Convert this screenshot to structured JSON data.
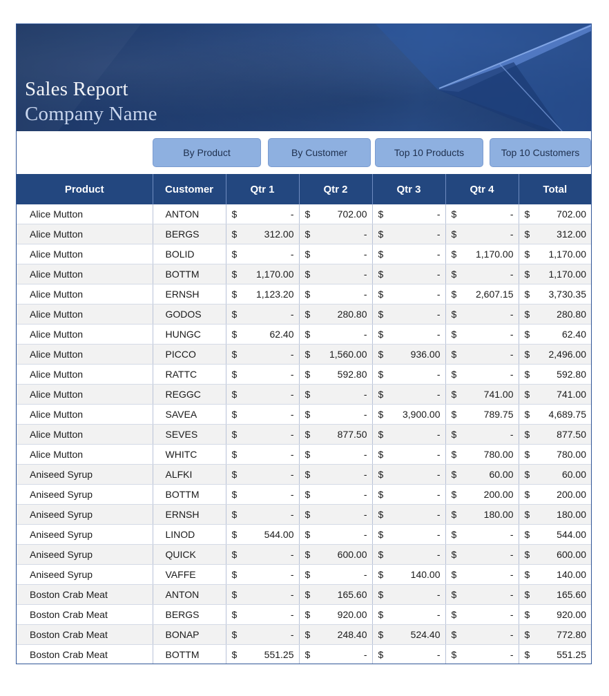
{
  "header": {
    "title": "Sales Report",
    "subtitle": "Company Name"
  },
  "nav": {
    "by_product": "By Product",
    "by_customer": "By Customer",
    "top10_products": "Top 10 Products",
    "top10_customers": "Top 10 Customers"
  },
  "table": {
    "columns": [
      "Product",
      "Customer",
      "Qtr 1",
      "Qtr 2",
      "Qtr 3",
      "Qtr 4",
      "Total"
    ],
    "currency_symbol": "$",
    "rows": [
      [
        "Alice Mutton",
        "ANTON",
        "-",
        "702.00",
        "-",
        "-",
        "702.00"
      ],
      [
        "Alice Mutton",
        "BERGS",
        "312.00",
        "-",
        "-",
        "-",
        "312.00"
      ],
      [
        "Alice Mutton",
        "BOLID",
        "-",
        "-",
        "-",
        "1,170.00",
        "1,170.00"
      ],
      [
        "Alice Mutton",
        "BOTTM",
        "1,170.00",
        "-",
        "-",
        "-",
        "1,170.00"
      ],
      [
        "Alice Mutton",
        "ERNSH",
        "1,123.20",
        "-",
        "-",
        "2,607.15",
        "3,730.35"
      ],
      [
        "Alice Mutton",
        "GODOS",
        "-",
        "280.80",
        "-",
        "-",
        "280.80"
      ],
      [
        "Alice Mutton",
        "HUNGC",
        "62.40",
        "-",
        "-",
        "-",
        "62.40"
      ],
      [
        "Alice Mutton",
        "PICCO",
        "-",
        "1,560.00",
        "936.00",
        "-",
        "2,496.00"
      ],
      [
        "Alice Mutton",
        "RATTC",
        "-",
        "592.80",
        "-",
        "-",
        "592.80"
      ],
      [
        "Alice Mutton",
        "REGGC",
        "-",
        "-",
        "-",
        "741.00",
        "741.00"
      ],
      [
        "Alice Mutton",
        "SAVEA",
        "-",
        "-",
        "3,900.00",
        "789.75",
        "4,689.75"
      ],
      [
        "Alice Mutton",
        "SEVES",
        "-",
        "877.50",
        "-",
        "-",
        "877.50"
      ],
      [
        "Alice Mutton",
        "WHITC",
        "-",
        "-",
        "-",
        "780.00",
        "780.00"
      ],
      [
        "Aniseed Syrup",
        "ALFKI",
        "-",
        "-",
        "-",
        "60.00",
        "60.00"
      ],
      [
        "Aniseed Syrup",
        "BOTTM",
        "-",
        "-",
        "-",
        "200.00",
        "200.00"
      ],
      [
        "Aniseed Syrup",
        "ERNSH",
        "-",
        "-",
        "-",
        "180.00",
        "180.00"
      ],
      [
        "Aniseed Syrup",
        "LINOD",
        "544.00",
        "-",
        "-",
        "-",
        "544.00"
      ],
      [
        "Aniseed Syrup",
        "QUICK",
        "-",
        "600.00",
        "-",
        "-",
        "600.00"
      ],
      [
        "Aniseed Syrup",
        "VAFFE",
        "-",
        "-",
        "140.00",
        "-",
        "140.00"
      ],
      [
        "Boston Crab Meat",
        "ANTON",
        "-",
        "165.60",
        "-",
        "-",
        "165.60"
      ],
      [
        "Boston Crab Meat",
        "BERGS",
        "-",
        "920.00",
        "-",
        "-",
        "920.00"
      ],
      [
        "Boston Crab Meat",
        "BONAP",
        "-",
        "248.40",
        "524.40",
        "-",
        "772.80"
      ],
      [
        "Boston Crab Meat",
        "BOTTM",
        "551.25",
        "-",
        "-",
        "-",
        "551.25"
      ]
    ]
  },
  "colors": {
    "header_bg": "#23477f",
    "button_bg": "#8eb0e0",
    "banner_bg": "#1f3c70"
  }
}
